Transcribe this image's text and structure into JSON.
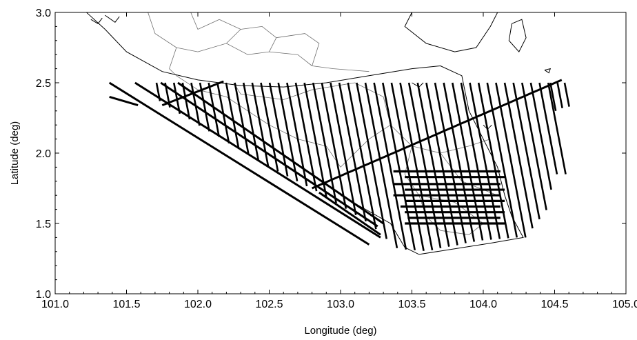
{
  "chart_data": {
    "type": "line",
    "title": "",
    "xlabel": "Longitude (deg)",
    "ylabel": "Latitude (deg)",
    "xlim": [
      101.0,
      105.0
    ],
    "ylim": [
      1.0,
      3.0
    ],
    "x_ticks": [
      "101.0",
      "101.5",
      "102.0",
      "102.5",
      "103.0",
      "103.5",
      "104.0",
      "104.5",
      "105.0"
    ],
    "y_ticks": [
      "1.0",
      "1.5",
      "2.0",
      "2.5",
      "3.0"
    ],
    "grid": false,
    "legend": "none",
    "colors": {
      "track": "#000000",
      "coast": "#000000",
      "boundary": "#6e6e6e"
    },
    "diagonal_tracks": {
      "lat_top": 2.5,
      "first_top_lon": 101.71,
      "last_top_lon": 104.5,
      "spacing_deg": 0.061,
      "slope_lat_per_lon": -5.3,
      "southern_limit": [
        [
          101.6,
          2.45
        ],
        [
          102.0,
          2.2
        ],
        [
          102.5,
          1.9
        ],
        [
          102.85,
          1.72
        ],
        [
          103.2,
          1.5
        ],
        [
          103.4,
          1.32
        ],
        [
          103.6,
          1.3
        ],
        [
          104.0,
          1.38
        ],
        [
          104.3,
          1.4
        ],
        [
          104.45,
          1.6
        ],
        [
          104.5,
          1.85
        ]
      ],
      "short_segments": [
        {
          "lon_top": 104.47,
          "lat_top": 2.5,
          "lat_bottom": 2.3
        },
        {
          "lon_top": 104.52,
          "lat_top": 2.5,
          "lat_bottom": 2.32
        },
        {
          "lon_top": 104.57,
          "lat_top": 2.5,
          "lat_bottom": 2.33
        }
      ]
    },
    "horizontal_tracks": [
      {
        "lat": 1.87,
        "lon_start": 103.37,
        "lon_end": 104.12
      },
      {
        "lat": 1.83,
        "lon_start": 103.45,
        "lon_end": 104.15
      },
      {
        "lat": 1.78,
        "lon_start": 103.37,
        "lon_end": 104.12
      },
      {
        "lat": 1.74,
        "lon_start": 103.45,
        "lon_end": 104.15
      },
      {
        "lat": 1.7,
        "lon_start": 103.37,
        "lon_end": 104.12
      },
      {
        "lat": 1.66,
        "lon_start": 103.45,
        "lon_end": 104.15
      },
      {
        "lat": 1.62,
        "lon_start": 103.42,
        "lon_end": 104.12
      },
      {
        "lat": 1.58,
        "lon_start": 103.45,
        "lon_end": 104.15
      },
      {
        "lat": 1.54,
        "lon_start": 103.47,
        "lon_end": 104.12
      },
      {
        "lat": 1.5,
        "lon_start": 103.45,
        "lon_end": 104.15
      }
    ],
    "long_tracks": [
      {
        "points": [
          [
            101.38,
            2.4
          ],
          [
            101.58,
            2.34
          ]
        ]
      },
      {
        "points": [
          [
            101.38,
            2.5
          ],
          [
            103.2,
            1.35
          ]
        ]
      },
      {
        "points": [
          [
            101.56,
            2.5
          ],
          [
            103.28,
            1.4
          ]
        ]
      },
      {
        "points": [
          [
            101.74,
            2.5
          ],
          [
            103.26,
            1.48
          ]
        ]
      },
      {
        "points": [
          [
            101.86,
            2.5
          ],
          [
            103.3,
            1.5
          ]
        ]
      },
      {
        "points": [
          [
            101.75,
            2.34
          ],
          [
            102.18,
            2.51
          ]
        ]
      },
      {
        "points": [
          [
            102.8,
            1.75
          ],
          [
            104.55,
            2.52
          ]
        ]
      },
      {
        "points": [
          [
            102.85,
            1.72
          ],
          [
            103.28,
            1.42
          ]
        ]
      }
    ],
    "coastline": [
      [
        [
          101.22,
          3.0
        ],
        [
          101.35,
          2.88
        ],
        [
          101.5,
          2.72
        ],
        [
          101.75,
          2.58
        ],
        [
          102.0,
          2.52
        ],
        [
          102.3,
          2.48
        ],
        [
          102.6,
          2.47
        ],
        [
          102.9,
          2.5
        ],
        [
          103.2,
          2.55
        ],
        [
          103.5,
          2.6
        ],
        [
          103.7,
          2.62
        ],
        [
          103.85,
          2.55
        ],
        [
          103.9,
          2.3
        ],
        [
          104.0,
          2.1
        ],
        [
          104.1,
          1.9
        ],
        [
          104.15,
          1.7
        ],
        [
          104.2,
          1.55
        ],
        [
          104.28,
          1.4
        ],
        [
          104.05,
          1.36
        ],
        [
          103.8,
          1.32
        ],
        [
          103.55,
          1.28
        ],
        [
          103.45,
          1.33
        ],
        [
          103.35,
          1.5
        ],
        [
          103.0,
          1.7
        ]
      ],
      [
        [
          103.5,
          3.0
        ],
        [
          103.45,
          2.9
        ],
        [
          103.6,
          2.78
        ],
        [
          103.8,
          2.72
        ],
        [
          103.95,
          2.75
        ],
        [
          104.05,
          2.9
        ],
        [
          104.1,
          3.0
        ]
      ],
      [
        [
          104.2,
          2.92
        ],
        [
          104.18,
          2.8
        ],
        [
          104.25,
          2.72
        ],
        [
          104.3,
          2.82
        ],
        [
          104.27,
          2.95
        ],
        [
          104.2,
          2.92
        ]
      ],
      [
        [
          101.25,
          2.95
        ],
        [
          101.3,
          2.92
        ],
        [
          101.33,
          2.96
        ]
      ],
      [
        [
          101.35,
          2.98
        ],
        [
          101.42,
          2.93
        ],
        [
          101.45,
          2.97
        ]
      ],
      [
        [
          104.43,
          2.59
        ],
        [
          104.47,
          2.6
        ],
        [
          104.46,
          2.57
        ],
        [
          104.43,
          2.59
        ]
      ],
      [
        [
          103.5,
          2.5
        ],
        [
          103.55,
          2.47
        ],
        [
          103.58,
          2.5
        ]
      ],
      [
        [
          104.0,
          2.2
        ],
        [
          104.03,
          2.17
        ],
        [
          104.06,
          2.2
        ]
      ]
    ],
    "boundaries": [
      [
        [
          101.65,
          3.0
        ],
        [
          101.7,
          2.85
        ],
        [
          101.85,
          2.75
        ],
        [
          102.0,
          2.72
        ]
      ],
      [
        [
          102.0,
          2.72
        ],
        [
          102.2,
          2.78
        ],
        [
          102.35,
          2.7
        ],
        [
          102.5,
          2.72
        ],
        [
          102.7,
          2.7
        ],
        [
          102.8,
          2.62
        ]
      ],
      [
        [
          102.8,
          2.62
        ],
        [
          102.95,
          2.6
        ],
        [
          103.2,
          2.58
        ]
      ],
      [
        [
          101.85,
          2.75
        ],
        [
          101.8,
          2.6
        ],
        [
          101.85,
          2.55
        ]
      ],
      [
        [
          102.15,
          2.95
        ],
        [
          102.3,
          2.88
        ],
        [
          102.45,
          2.9
        ],
        [
          102.55,
          2.82
        ],
        [
          102.5,
          2.72
        ]
      ],
      [
        [
          102.3,
          2.88
        ],
        [
          102.2,
          2.78
        ]
      ],
      [
        [
          102.55,
          2.82
        ],
        [
          102.75,
          2.85
        ],
        [
          102.85,
          2.78
        ],
        [
          102.8,
          2.62
        ]
      ],
      [
        [
          101.95,
          3.0
        ],
        [
          102.0,
          2.88
        ],
        [
          102.15,
          2.95
        ]
      ],
      [
        [
          101.85,
          2.55
        ],
        [
          102.0,
          2.45
        ],
        [
          102.2,
          2.4
        ],
        [
          102.35,
          2.3
        ],
        [
          102.5,
          2.2
        ]
      ],
      [
        [
          102.25,
          2.5
        ],
        [
          102.3,
          2.42
        ],
        [
          102.6,
          2.38
        ],
        [
          102.8,
          2.45
        ],
        [
          103.1,
          2.5
        ]
      ],
      [
        [
          102.5,
          2.2
        ],
        [
          102.7,
          2.1
        ],
        [
          102.9,
          2.05
        ],
        [
          103.0,
          1.9
        ]
      ],
      [
        [
          103.1,
          2.5
        ],
        [
          103.3,
          2.4
        ],
        [
          103.35,
          2.2
        ],
        [
          103.5,
          2.05
        ],
        [
          103.7,
          2.0
        ],
        [
          103.9,
          2.05
        ],
        [
          104.05,
          2.1
        ]
      ],
      [
        [
          103.35,
          2.2
        ],
        [
          103.2,
          2.1
        ],
        [
          103.0,
          1.9
        ]
      ],
      [
        [
          103.5,
          2.05
        ],
        [
          103.45,
          1.85
        ],
        [
          103.55,
          1.7
        ],
        [
          103.6,
          1.55
        ],
        [
          103.7,
          1.45
        ],
        [
          103.9,
          1.42
        ],
        [
          104.0,
          1.5
        ]
      ],
      [
        [
          103.7,
          2.0
        ],
        [
          103.85,
          1.8
        ],
        [
          104.1,
          1.7
        ]
      ],
      [
        [
          103.55,
          1.7
        ],
        [
          103.8,
          1.65
        ],
        [
          104.0,
          1.5
        ]
      ]
    ]
  }
}
